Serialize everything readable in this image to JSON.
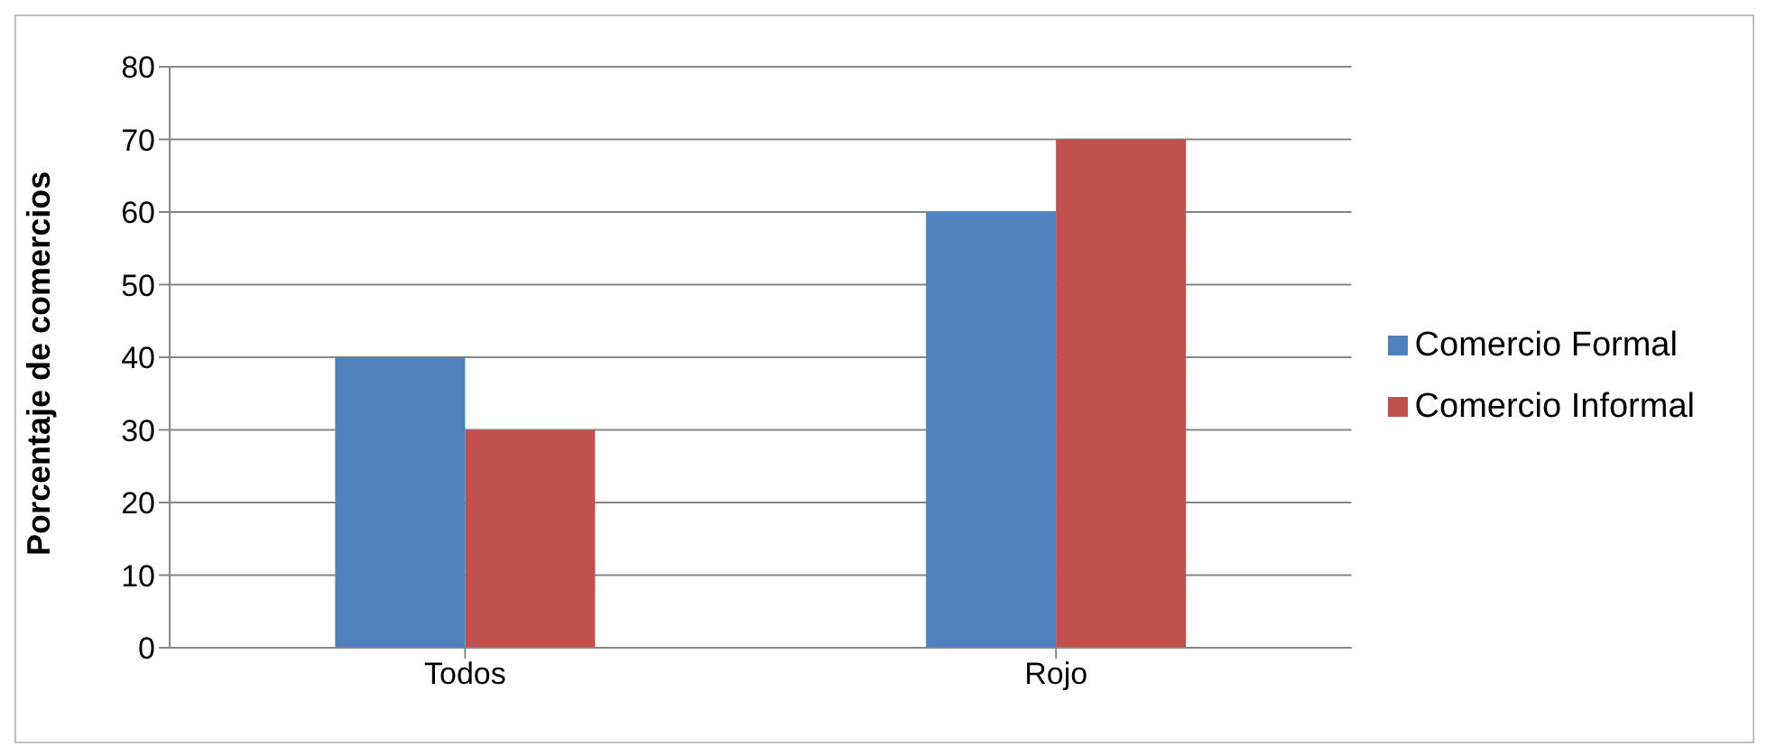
{
  "chart_data": {
    "type": "bar",
    "ylabel": "Porcentaje de comercios",
    "categories": [
      "Todos",
      "Rojo"
    ],
    "series": [
      {
        "name": "Comercio Formal",
        "color": "#4f81bd",
        "values": [
          40,
          60
        ]
      },
      {
        "name": "Comercio Informal",
        "color": "#c0504d",
        "values": [
          30,
          70
        ]
      }
    ],
    "ylim": [
      0,
      80
    ],
    "yticks": [
      0,
      10,
      20,
      30,
      40,
      50,
      60,
      70,
      80
    ],
    "grid": "y",
    "legend": "right"
  }
}
